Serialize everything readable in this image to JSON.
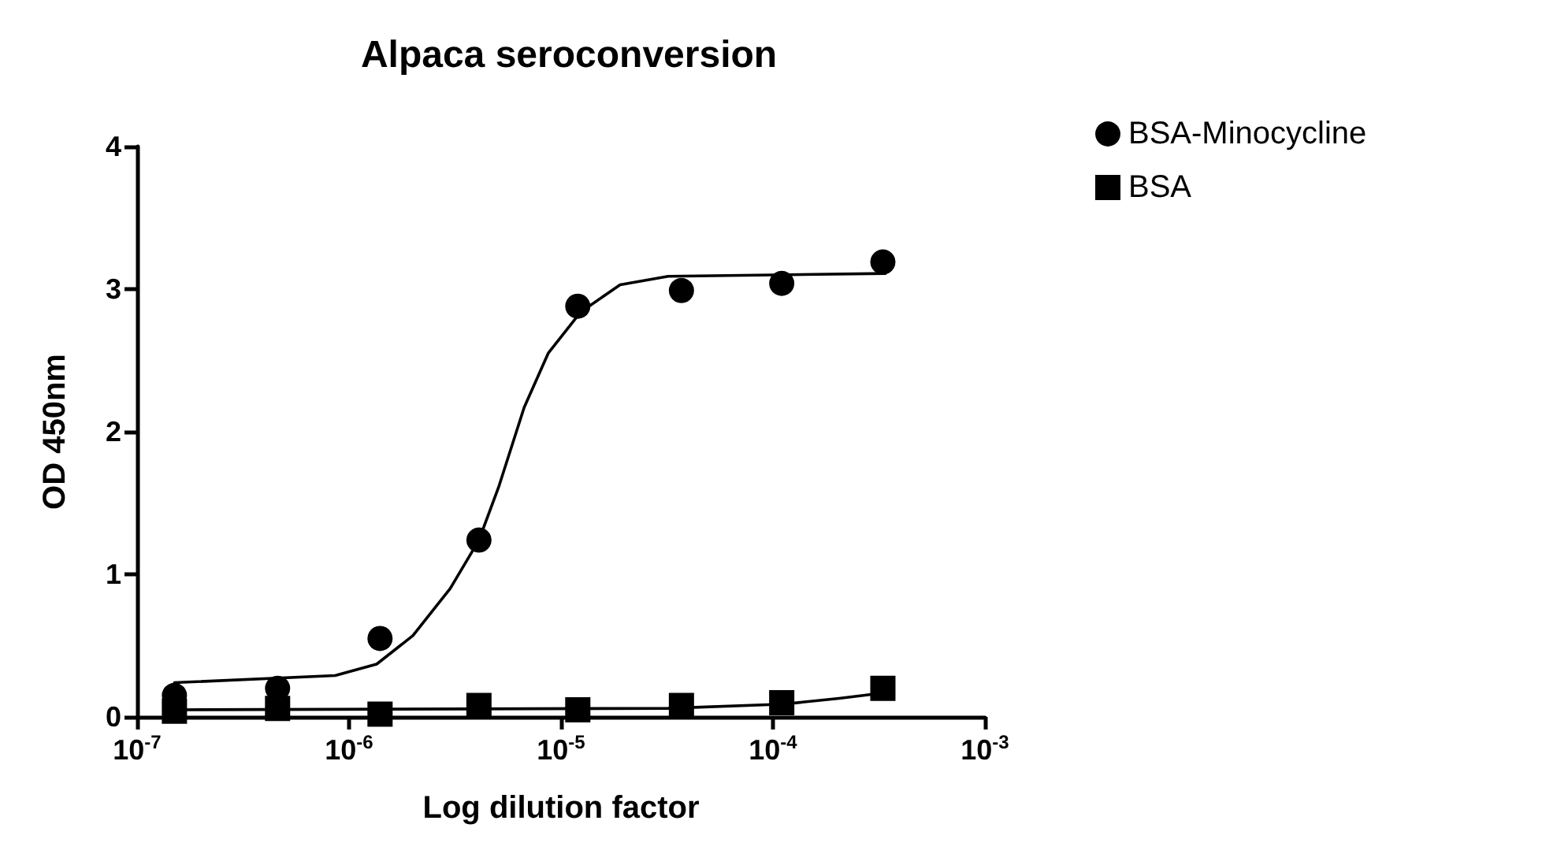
{
  "chart_data": {
    "type": "scatter",
    "title": "Alpaca seroconversion",
    "xlabel": "Log dilution factor",
    "ylabel": "OD 450nm",
    "log": "x",
    "xlim": [
      1e-07,
      0.001
    ],
    "xticks": [
      {
        "value": 1e-07,
        "label": "10$^{-7}$"
      },
      {
        "value": 1e-06,
        "label": "10$^{-6}$"
      },
      {
        "value": 1e-05,
        "label": "10$^{-5}$"
      },
      {
        "value": 0.0001,
        "label": "10$^{-4}$"
      },
      {
        "value": 0.001,
        "label": "10$^{-3}$"
      }
    ],
    "ylim": [
      0,
      4
    ],
    "yticks": [
      0,
      1,
      2,
      3,
      4
    ],
    "grid": false,
    "legend": "top right",
    "series": [
      {
        "name": "BSA-Minocycline",
        "color": "#000000",
        "marker": "circle",
        "x": [
          1.5e-07,
          4.6e-07,
          1.4e-06,
          4.1e-06,
          1.2e-05,
          3.7e-05,
          0.00011,
          0.00033
        ],
        "values": [
          0.15,
          0.2,
          0.55,
          1.24,
          2.88,
          2.99,
          3.04,
          3.19
        ]
      },
      {
        "name": "BSA",
        "color": "#000000",
        "marker": "square",
        "x": [
          1.5e-07,
          4.6e-07,
          1.4e-06,
          4.1e-06,
          1.2e-05,
          3.7e-05,
          0.00011,
          0.00033
        ],
        "values": [
          0.04,
          0.06,
          0.02,
          0.08,
          0.05,
          0.08,
          0.1,
          0.2
        ]
      },
      {
        "type": "line",
        "color": "#000000",
        "marker": "none",
        "x": [
          1.5e-07,
          8.6e-07,
          1.35e-06,
          2e-06,
          3e-06,
          4.1e-06,
          5.1e-06,
          6.7e-06,
          8.7e-06,
          1.24e-05,
          1.9e-05,
          3.2e-05,
          0.00034
        ],
        "values": [
          0.24,
          0.29,
          0.37,
          0.57,
          0.9,
          1.24,
          1.62,
          2.17,
          2.55,
          2.84,
          3.03,
          3.09,
          3.11
        ]
      },
      {
        "type": "line",
        "color": "#000000",
        "marker": "none",
        "x": [
          1.5e-07,
          3.2e-05,
          0.000113,
          0.000205,
          0.00034
        ],
        "values": [
          0.05,
          0.06,
          0.09,
          0.13,
          0.17
        ]
      }
    ]
  }
}
